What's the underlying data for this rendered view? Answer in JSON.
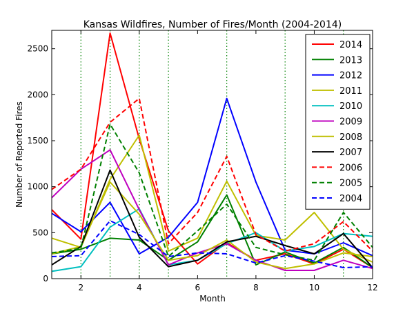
{
  "chart_data": {
    "type": "line",
    "title": "Kansas Wildfires, Number of Fires/Month (2004-2014)",
    "xlabel": "Month",
    "ylabel": "Number of Reported Fires",
    "x": [
      1,
      2,
      3,
      4,
      5,
      6,
      7,
      8,
      9,
      10,
      11,
      12
    ],
    "xlim": [
      1,
      12
    ],
    "ylim": [
      0,
      2700
    ],
    "xticks": [
      2,
      4,
      6,
      8,
      10,
      12
    ],
    "yticks": [
      0,
      500,
      1000,
      1500,
      2000,
      2500
    ],
    "vertical_grid_at": [
      2,
      3,
      4,
      5,
      7,
      9,
      11
    ],
    "grid_style": "green dotted vertical lines",
    "legend_position": "upper right",
    "series": [
      {
        "name": "2014",
        "color": "#ff0000",
        "dash": "solid",
        "values": [
          750,
          430,
          2670,
          1520,
          520,
          160,
          390,
          200,
          270,
          160,
          320,
          120
        ]
      },
      {
        "name": "2013",
        "color": "#008000",
        "dash": "solid",
        "values": [
          270,
          320,
          440,
          420,
          200,
          400,
          910,
          150,
          290,
          170,
          340,
          120
        ]
      },
      {
        "name": "2012",
        "color": "#0000ff",
        "dash": "solid",
        "values": [
          710,
          510,
          830,
          270,
          450,
          830,
          1960,
          1050,
          310,
          270,
          390,
          250
        ]
      },
      {
        "name": "2011",
        "color": "#bfbf00",
        "dash": "solid",
        "values": [
          440,
          340,
          1080,
          1560,
          300,
          440,
          1060,
          470,
          420,
          720,
          320,
          180
        ]
      },
      {
        "name": "2010",
        "color": "#00bfbf",
        "dash": "solid",
        "values": [
          80,
          130,
          560,
          760,
          150,
          200,
          380,
          500,
          300,
          350,
          490,
          460
        ]
      },
      {
        "name": "2009",
        "color": "#bf00bf",
        "dash": "solid",
        "values": [
          880,
          1190,
          1400,
          750,
          150,
          280,
          380,
          200,
          90,
          90,
          200,
          110
        ]
      },
      {
        "name": "2008",
        "color": "#bfbf00",
        "dash": "solid",
        "values": [
          270,
          350,
          1050,
          700,
          200,
          250,
          420,
          180,
          110,
          160,
          280,
          240
        ]
      },
      {
        "name": "2007",
        "color": "#000000",
        "dash": "solid",
        "values": [
          150,
          350,
          1180,
          450,
          130,
          200,
          400,
          460,
          360,
          270,
          490,
          120
        ]
      },
      {
        "name": "2006",
        "color": "#ff0000",
        "dash": "dashed",
        "values": [
          970,
          1190,
          1700,
          1960,
          380,
          720,
          1330,
          480,
          300,
          380,
          620,
          300
        ]
      },
      {
        "name": "2005",
        "color": "#008000",
        "dash": "dashed",
        "values": [
          280,
          330,
          1680,
          1150,
          240,
          520,
          810,
          340,
          260,
          200,
          720,
          340
        ]
      },
      {
        "name": "2004",
        "color": "#0000ff",
        "dash": "dashed",
        "values": [
          240,
          250,
          630,
          480,
          240,
          280,
          270,
          170,
          250,
          190,
          120,
          130
        ]
      }
    ]
  }
}
